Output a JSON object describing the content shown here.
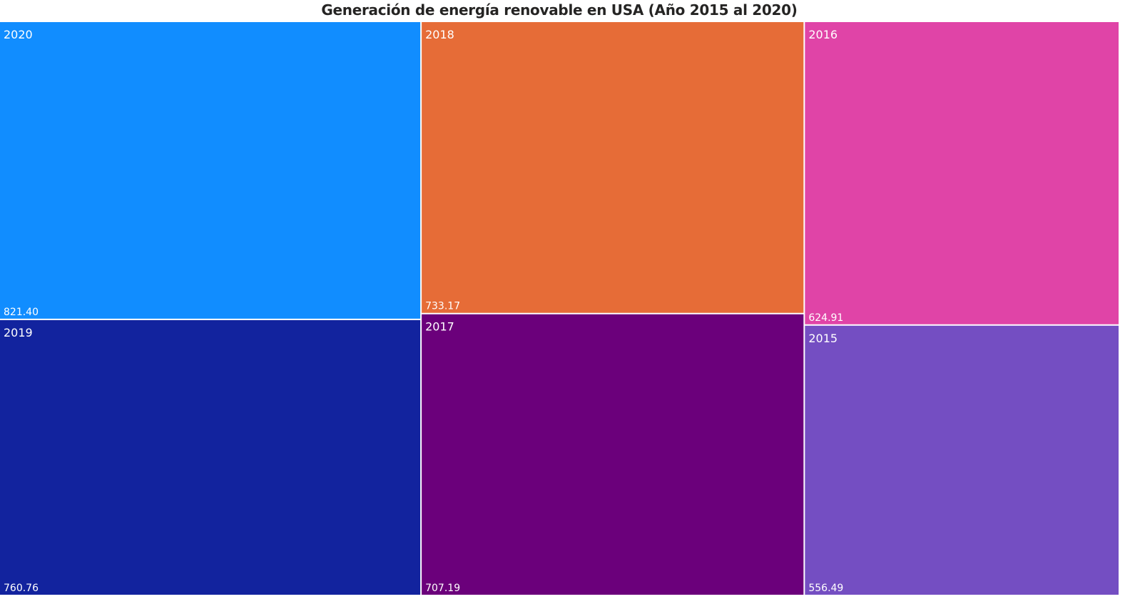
{
  "chart_data": {
    "type": "treemap",
    "title": "Generación de energía renovable en USA (Año 2015 al 2020)",
    "categories": [
      "2020",
      "2019",
      "2018",
      "2017",
      "2016",
      "2015"
    ],
    "values": [
      821.4,
      760.76,
      733.17,
      707.19,
      624.91,
      556.49
    ],
    "value_labels": [
      "821.40",
      "760.76",
      "733.17",
      "707.19",
      "624.91",
      "556.49"
    ],
    "colors": [
      "#118DFF",
      "#12239E",
      "#E66C37",
      "#6B007B",
      "#E044A7",
      "#744EC2"
    ],
    "label_color": "#ffffff",
    "legend": "none"
  }
}
